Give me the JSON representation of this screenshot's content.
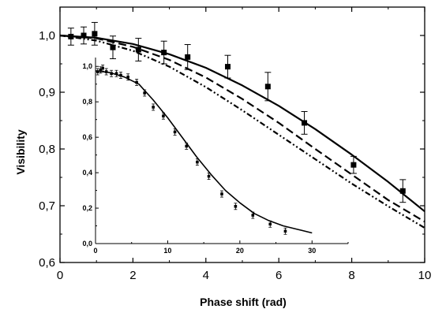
{
  "chart_data": [
    {
      "id": "main",
      "type": "scatter",
      "xlabel": "Phase shift (rad)",
      "ylabel": "Visibility",
      "xlim": [
        0,
        10
      ],
      "ylim": [
        0.6,
        1.05
      ],
      "xticks": [
        0,
        2,
        4,
        6,
        8,
        10
      ],
      "xtick_labels": [
        "0",
        "2",
        "4",
        "6",
        "8",
        "10"
      ],
      "yticks": [
        0.6,
        0.7,
        0.8,
        0.9,
        1.0
      ],
      "ytick_labels": [
        "0,6",
        "0,7",
        "0,8",
        "0,9",
        "1,0"
      ],
      "points": [
        {
          "x": 0.3,
          "y": 0.998,
          "err": 0.015
        },
        {
          "x": 0.65,
          "y": 1.0,
          "err": 0.015
        },
        {
          "x": 0.95,
          "y": 1.003,
          "err": 0.02
        },
        {
          "x": 1.45,
          "y": 0.979,
          "err": 0.02
        },
        {
          "x": 2.15,
          "y": 0.975,
          "err": 0.02
        },
        {
          "x": 2.85,
          "y": 0.97,
          "err": 0.02
        },
        {
          "x": 3.5,
          "y": 0.962,
          "err": 0.022
        },
        {
          "x": 4.6,
          "y": 0.945,
          "err": 0.02
        },
        {
          "x": 5.7,
          "y": 0.91,
          "err": 0.025
        },
        {
          "x": 6.7,
          "y": 0.846,
          "err": 0.02
        },
        {
          "x": 8.05,
          "y": 0.772,
          "err": 0.015
        },
        {
          "x": 9.4,
          "y": 0.726,
          "err": 0.02
        }
      ],
      "curves": [
        {
          "style": "solid",
          "values": {
            "x": [
              0,
              1,
              2,
              3,
              4,
              5,
              6,
              7,
              8,
              9,
              10
            ],
            "y": [
              1.0,
              0.996,
              0.985,
              0.967,
              0.943,
              0.912,
              0.876,
              0.835,
              0.79,
              0.742,
              0.69
            ]
          }
        },
        {
          "style": "dashed",
          "values": {
            "x": [
              0,
              1,
              2,
              3,
              4,
              5,
              6,
              7,
              8,
              9,
              10
            ],
            "y": [
              1.0,
              0.995,
              0.98,
              0.957,
              0.926,
              0.888,
              0.846,
              0.8,
              0.755,
              0.71,
              0.672
            ]
          }
        },
        {
          "style": "dash-dot-dot",
          "values": {
            "x": [
              0,
              1,
              2,
              3,
              4,
              5,
              6,
              7,
              8,
              9,
              10
            ],
            "y": [
              1.0,
              0.991,
              0.973,
              0.945,
              0.909,
              0.868,
              0.825,
              0.782,
              0.739,
              0.699,
              0.661
            ]
          }
        }
      ]
    },
    {
      "id": "inset",
      "type": "scatter",
      "xlim": [
        0,
        35
      ],
      "ylim": [
        0,
        1.05
      ],
      "xticks": [
        0,
        10,
        20,
        30
      ],
      "xtick_labels": [
        "0",
        "10",
        "20",
        "30"
      ],
      "yticks": [
        0,
        0.2,
        0.4,
        0.6,
        0.8,
        1.0
      ],
      "ytick_labels": [
        "0,0",
        "0,2",
        "0,4",
        "0,6",
        "0,8",
        "1,0"
      ],
      "points": [
        {
          "x": 0.3,
          "y": 0.97
        },
        {
          "x": 0.7,
          "y": 0.98
        },
        {
          "x": 1.0,
          "y": 0.99
        },
        {
          "x": 1.5,
          "y": 0.97
        },
        {
          "x": 2.2,
          "y": 0.96
        },
        {
          "x": 2.9,
          "y": 0.96
        },
        {
          "x": 3.5,
          "y": 0.95
        },
        {
          "x": 4.5,
          "y": 0.94
        },
        {
          "x": 5.7,
          "y": 0.91
        },
        {
          "x": 6.8,
          "y": 0.85
        },
        {
          "x": 8.0,
          "y": 0.77
        },
        {
          "x": 9.4,
          "y": 0.72
        },
        {
          "x": 11.0,
          "y": 0.63
        },
        {
          "x": 12.6,
          "y": 0.55
        },
        {
          "x": 14.1,
          "y": 0.46
        },
        {
          "x": 15.7,
          "y": 0.38
        },
        {
          "x": 17.5,
          "y": 0.28
        },
        {
          "x": 19.4,
          "y": 0.21
        },
        {
          "x": 21.8,
          "y": 0.16
        },
        {
          "x": 24.2,
          "y": 0.11
        },
        {
          "x": 26.3,
          "y": 0.07
        }
      ],
      "curve": {
        "style": "solid",
        "values": {
          "x": [
            0,
            2,
            4,
            6,
            8,
            10,
            12,
            14,
            16,
            18,
            20,
            22,
            24,
            26,
            28,
            30
          ],
          "y": [
            0.975,
            0.965,
            0.94,
            0.9,
            0.81,
            0.71,
            0.6,
            0.49,
            0.39,
            0.3,
            0.23,
            0.17,
            0.13,
            0.1,
            0.08,
            0.06
          ]
        }
      }
    }
  ]
}
